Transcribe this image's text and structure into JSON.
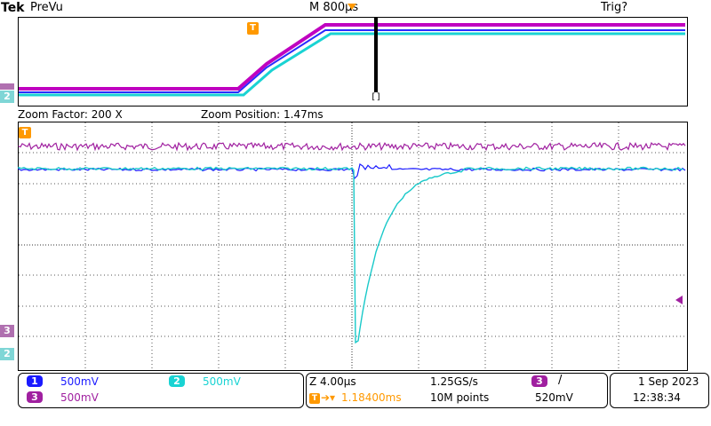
{
  "header": {
    "brand": "Tek",
    "mode": "PreVu",
    "timebase": "M 800µs",
    "trigger_status": "Trig?"
  },
  "zoom_info": {
    "factor": "Zoom Factor: 200 X",
    "position": "Zoom Position: 1.47ms"
  },
  "markers": {
    "trigger_marker": "T",
    "ch2_marker": "2",
    "ch3_marker": "3",
    "cursor_bracket": "[]"
  },
  "channels": [
    {
      "id": "1",
      "scale": "500mV",
      "color": "#1a1aff"
    },
    {
      "id": "2",
      "scale": "500mV",
      "color": "#19d3d3"
    },
    {
      "id": "3",
      "scale": "500mV",
      "color": "#a020a0"
    }
  ],
  "acquisition": {
    "zoom_scale": "Z 4.00µs",
    "sample_rate": "1.25GS/s",
    "trigger_channel": "3",
    "trigger_slope": "/",
    "trigger_position": "1.18400ms",
    "record_length": "10M points",
    "trigger_level": "520mV"
  },
  "datetime": {
    "date": "1 Sep  2023",
    "time": "12:38:34"
  },
  "colors": {
    "ch1": "#1a1aff",
    "ch2": "#19d3d3",
    "ch3": "#a020a0",
    "trigger": "#ff9900",
    "grid": "#000000"
  }
}
